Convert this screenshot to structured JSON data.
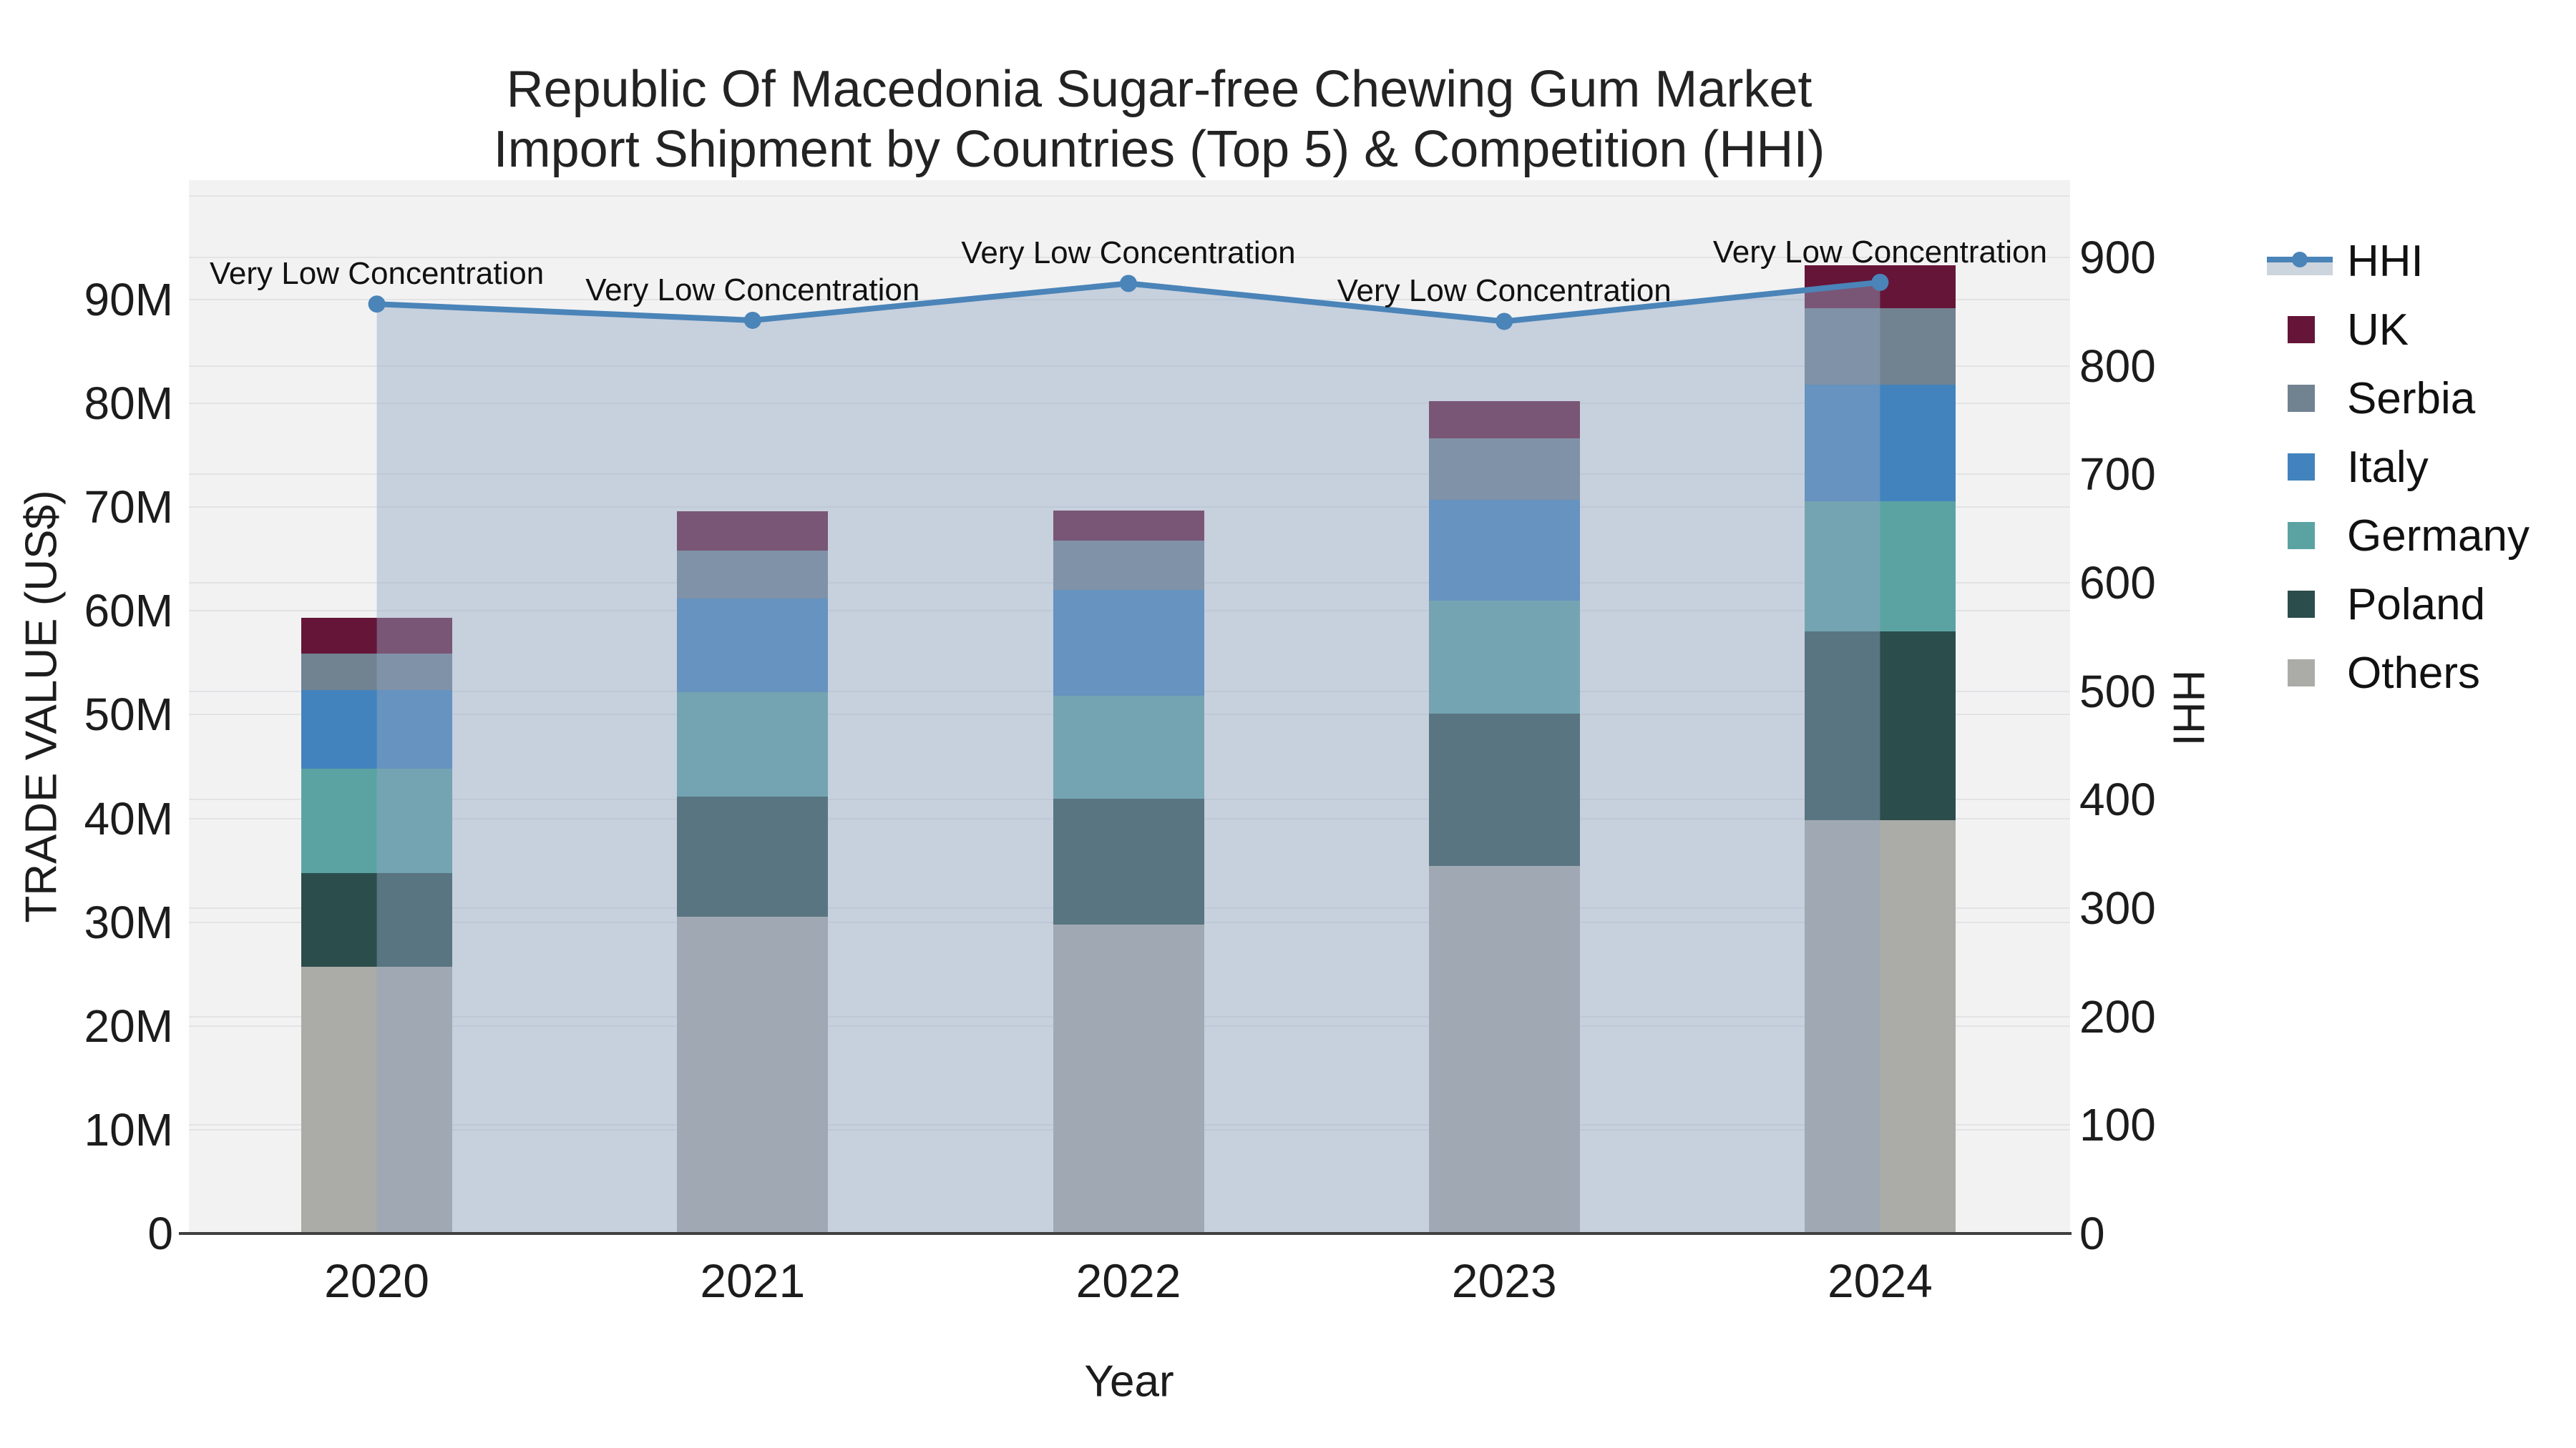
{
  "title": {
    "line1": "Republic Of Macedonia Sugar-free Chewing Gum Market",
    "line2": "Import Shipment by Countries (Top 5) & Competition (HHI)"
  },
  "axes": {
    "x_title": "Year",
    "y_left_title": "TRADE VALUE (US$)",
    "y_right_title": "HHI",
    "y_left_ticks": [
      "0",
      "10M",
      "20M",
      "30M",
      "40M",
      "50M",
      "60M",
      "70M",
      "80M",
      "90M"
    ],
    "y_right_ticks": [
      "0",
      "100",
      "200",
      "300",
      "400",
      "500",
      "600",
      "700",
      "800",
      "900"
    ]
  },
  "chart_data": {
    "type": "bar+line",
    "categories": [
      "2020",
      "2021",
      "2022",
      "2023",
      "2024"
    ],
    "bar_unit": "million US$",
    "series": [
      {
        "name": "UK",
        "color": "#651537",
        "values": [
          3.4,
          3.8,
          2.9,
          3.6,
          4.1
        ]
      },
      {
        "name": "Serbia",
        "color": "#718291",
        "values": [
          3.5,
          4.6,
          4.8,
          5.9,
          7.4
        ]
      },
      {
        "name": "Italy",
        "color": "#4283bd",
        "values": [
          7.6,
          9.0,
          10.2,
          9.7,
          11.2
        ]
      },
      {
        "name": "Germany",
        "color": "#5ba3a3",
        "values": [
          10.1,
          10.1,
          9.9,
          10.9,
          12.6
        ]
      },
      {
        "name": "Poland",
        "color": "#2b4d4c",
        "values": [
          9.0,
          11.6,
          12.1,
          14.7,
          18.2
        ]
      },
      {
        "name": "Others",
        "color": "#ababa7",
        "values": [
          25.7,
          30.5,
          29.8,
          35.4,
          39.8
        ]
      }
    ],
    "stack_totals_millions": [
      59.3,
      69.6,
      69.7,
      80.2,
      93.3
    ],
    "line_series": {
      "name": "HHI",
      "axis": "right",
      "color": "#4a84b8",
      "fill_color": "rgba(146,166,196,0.45)",
      "values": [
        857,
        842,
        876,
        841,
        877
      ]
    },
    "annotations": [
      {
        "text": "Very Low Concentration",
        "x": "2020"
      },
      {
        "text": "Very Low Concentration",
        "x": "2021"
      },
      {
        "text": "Very Low Concentration",
        "x": "2022"
      },
      {
        "text": "Very Low Concentration",
        "x": "2023"
      },
      {
        "text": "Very Low Concentration",
        "x": "2024"
      }
    ],
    "legend_entries": [
      "HHI",
      "UK",
      "Serbia",
      "Italy",
      "Germany",
      "Poland",
      "Others"
    ],
    "legend_position": "right",
    "ylim_left_millions": [
      0,
      101
    ],
    "ylim_right": [
      0,
      969
    ],
    "grid": true
  }
}
